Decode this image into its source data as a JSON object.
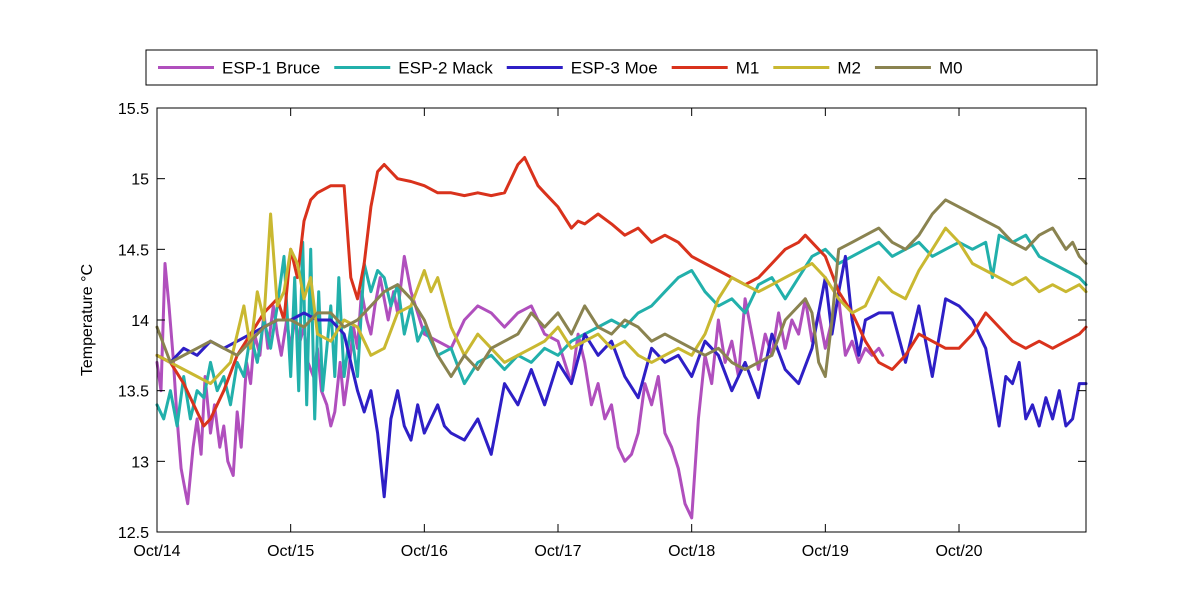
{
  "chart_data": {
    "type": "line",
    "title": "",
    "xlabel": "",
    "ylabel": "Temperature °C",
    "xlim": [
      0,
      6.95
    ],
    "ylim": [
      12.5,
      15.5
    ],
    "x_tick_values": [
      0,
      1,
      2,
      3,
      4,
      5,
      6
    ],
    "x_tick_labels": [
      "Oct/14",
      "Oct/15",
      "Oct/16",
      "Oct/17",
      "Oct/18",
      "Oct/19",
      "Oct/20"
    ],
    "y_ticks": [
      12.5,
      13,
      13.5,
      14,
      14.5,
      15,
      15.5
    ],
    "y_tick_labels": [
      "12.5",
      "13",
      "13.5",
      "14",
      "14.5",
      "15",
      "15.5"
    ],
    "grid": false,
    "legend_position": "top",
    "series": [
      {
        "name": "ESP-1 Bruce",
        "color": "#b04fbd",
        "x": [
          0,
          0.03,
          0.06,
          0.09,
          0.12,
          0.15,
          0.18,
          0.2,
          0.23,
          0.27,
          0.3,
          0.33,
          0.36,
          0.4,
          0.43,
          0.47,
          0.5,
          0.53,
          0.57,
          0.6,
          0.63,
          0.67,
          0.7,
          0.73,
          0.77,
          0.8,
          0.83,
          0.87,
          0.9,
          0.93,
          0.97,
          1.0,
          1.03,
          1.07,
          1.1,
          1.13,
          1.17,
          1.2,
          1.23,
          1.27,
          1.3,
          1.33,
          1.37,
          1.4,
          1.43,
          1.47,
          1.5,
          1.53,
          1.57,
          1.6,
          1.63,
          1.67,
          1.7,
          1.73,
          1.77,
          1.8,
          1.85,
          1.9,
          2.0,
          2.1,
          2.2,
          2.3,
          2.4,
          2.5,
          2.6,
          2.7,
          2.8,
          2.9,
          3.0,
          3.05,
          3.1,
          3.15,
          3.2,
          3.25,
          3.3,
          3.35,
          3.4,
          3.45,
          3.5,
          3.55,
          3.6,
          3.65,
          3.7,
          3.75,
          3.8,
          3.85,
          3.9,
          3.95,
          4.0,
          4.05,
          4.1,
          4.15,
          4.2,
          4.25,
          4.3,
          4.35,
          4.4,
          4.45,
          4.5,
          4.55,
          4.6,
          4.65,
          4.7,
          4.75,
          4.8,
          4.85,
          4.9,
          4.95,
          5.0,
          5.05,
          5.1,
          5.15,
          5.2,
          5.25,
          5.3,
          5.35,
          5.4,
          5.43
        ],
        "values": [
          13.7,
          13.5,
          14.4,
          14.1,
          13.75,
          13.3,
          12.95,
          12.85,
          12.7,
          13.1,
          13.3,
          13.05,
          13.6,
          13.2,
          13.4,
          13.1,
          13.25,
          13.0,
          12.9,
          13.35,
          13.1,
          13.7,
          13.55,
          13.9,
          13.75,
          14.05,
          13.8,
          14.1,
          13.9,
          13.75,
          14.0,
          13.8,
          14.0,
          13.85,
          13.95,
          13.7,
          13.6,
          13.8,
          13.5,
          13.4,
          13.25,
          13.35,
          13.7,
          13.4,
          13.6,
          13.95,
          13.8,
          14.2,
          14.0,
          13.9,
          14.1,
          14.3,
          14.15,
          14.0,
          14.2,
          14.05,
          14.45,
          14.2,
          13.9,
          13.85,
          13.8,
          14.0,
          14.1,
          14.05,
          13.95,
          14.05,
          14.1,
          13.9,
          13.85,
          13.7,
          13.55,
          13.9,
          13.7,
          13.4,
          13.55,
          13.3,
          13.4,
          13.1,
          13.0,
          13.05,
          13.2,
          13.55,
          13.4,
          13.6,
          13.2,
          13.1,
          12.95,
          12.7,
          12.6,
          13.3,
          13.75,
          13.55,
          14.0,
          13.7,
          13.85,
          13.6,
          14.15,
          13.9,
          13.65,
          13.9,
          13.75,
          14.05,
          13.8,
          14.0,
          13.9,
          14.15,
          13.85,
          14.05,
          13.8,
          14.0,
          14.15,
          13.75,
          13.85,
          13.7,
          13.8,
          13.75,
          13.8,
          13.75
        ]
      },
      {
        "name": "ESP-2 Mack",
        "color": "#22b0ab",
        "x": [
          0,
          0.05,
          0.1,
          0.15,
          0.2,
          0.25,
          0.3,
          0.35,
          0.4,
          0.45,
          0.5,
          0.55,
          0.6,
          0.65,
          0.7,
          0.75,
          0.8,
          0.85,
          0.9,
          0.95,
          1.0,
          1.03,
          1.06,
          1.09,
          1.12,
          1.15,
          1.18,
          1.21,
          1.24,
          1.27,
          1.3,
          1.33,
          1.36,
          1.4,
          1.45,
          1.5,
          1.55,
          1.6,
          1.65,
          1.7,
          1.75,
          1.8,
          1.85,
          1.9,
          1.95,
          2.0,
          2.1,
          2.2,
          2.3,
          2.4,
          2.5,
          2.6,
          2.7,
          2.8,
          2.9,
          3.0,
          3.1,
          3.2,
          3.3,
          3.4,
          3.5,
          3.6,
          3.7,
          3.8,
          3.9,
          4.0,
          4.1,
          4.2,
          4.3,
          4.4,
          4.5,
          4.6,
          4.7,
          4.8,
          4.9,
          5.0,
          5.1,
          5.2,
          5.3,
          5.4,
          5.5,
          5.6,
          5.7,
          5.8,
          5.9,
          6.0,
          6.1,
          6.2,
          6.25,
          6.3,
          6.4,
          6.5,
          6.6,
          6.7,
          6.8,
          6.9,
          6.95
        ],
        "values": [
          13.4,
          13.3,
          13.5,
          13.25,
          13.6,
          13.3,
          13.5,
          13.45,
          13.7,
          13.5,
          13.6,
          13.4,
          13.7,
          13.6,
          13.9,
          13.7,
          14.0,
          13.8,
          14.1,
          14.45,
          13.6,
          14.3,
          13.5,
          14.55,
          13.4,
          14.5,
          13.3,
          14.2,
          13.5,
          13.8,
          14.1,
          13.6,
          14.3,
          13.6,
          13.95,
          13.6,
          14.4,
          14.2,
          14.35,
          14.3,
          14.1,
          14.25,
          13.9,
          14.1,
          13.85,
          13.95,
          13.75,
          13.8,
          13.55,
          13.7,
          13.75,
          13.65,
          13.75,
          13.7,
          13.8,
          13.75,
          13.85,
          13.9,
          13.95,
          14.0,
          13.95,
          14.05,
          14.1,
          14.2,
          14.3,
          14.35,
          14.2,
          14.1,
          14.15,
          14.05,
          14.25,
          14.3,
          14.15,
          14.3,
          14.45,
          14.5,
          14.4,
          14.45,
          14.5,
          14.55,
          14.45,
          14.5,
          14.55,
          14.45,
          14.5,
          14.55,
          14.5,
          14.55,
          14.3,
          14.6,
          14.55,
          14.6,
          14.45,
          14.4,
          14.35,
          14.3,
          14.25
        ]
      },
      {
        "name": "ESP-3 Moe",
        "color": "#2e1fc6",
        "x": [
          0,
          0.1,
          0.2,
          0.3,
          0.4,
          0.5,
          0.6,
          0.7,
          0.8,
          0.9,
          1.0,
          1.1,
          1.2,
          1.3,
          1.4,
          1.5,
          1.55,
          1.6,
          1.65,
          1.7,
          1.75,
          1.8,
          1.85,
          1.9,
          1.95,
          2.0,
          2.05,
          2.1,
          2.15,
          2.2,
          2.3,
          2.4,
          2.5,
          2.6,
          2.7,
          2.8,
          2.9,
          3.0,
          3.1,
          3.2,
          3.3,
          3.4,
          3.5,
          3.6,
          3.7,
          3.8,
          3.9,
          4.0,
          4.1,
          4.2,
          4.3,
          4.4,
          4.5,
          4.6,
          4.7,
          4.8,
          4.9,
          5.0,
          5.05,
          5.1,
          5.15,
          5.2,
          5.25,
          5.3,
          5.4,
          5.5,
          5.6,
          5.7,
          5.8,
          5.9,
          6.0,
          6.1,
          6.2,
          6.3,
          6.35,
          6.4,
          6.45,
          6.5,
          6.55,
          6.6,
          6.65,
          6.7,
          6.75,
          6.8,
          6.85,
          6.9,
          6.95
        ],
        "values": [
          13.75,
          13.7,
          13.8,
          13.75,
          13.85,
          13.8,
          13.85,
          13.9,
          13.95,
          14.0,
          14.0,
          14.05,
          14.0,
          14.0,
          13.9,
          13.5,
          13.35,
          13.5,
          13.2,
          12.75,
          13.3,
          13.5,
          13.25,
          13.15,
          13.4,
          13.2,
          13.3,
          13.4,
          13.25,
          13.2,
          13.15,
          13.3,
          13.05,
          13.55,
          13.4,
          13.65,
          13.4,
          13.7,
          13.55,
          13.9,
          13.75,
          13.85,
          13.6,
          13.45,
          13.8,
          13.7,
          13.75,
          13.6,
          13.85,
          13.75,
          13.5,
          13.7,
          13.45,
          13.9,
          13.65,
          13.55,
          13.8,
          14.3,
          13.9,
          14.2,
          14.45,
          14.0,
          13.75,
          14.0,
          14.05,
          14.05,
          13.7,
          14.1,
          13.6,
          14.15,
          14.1,
          14.0,
          13.8,
          13.25,
          13.6,
          13.55,
          13.7,
          13.3,
          13.4,
          13.25,
          13.45,
          13.3,
          13.5,
          13.25,
          13.3,
          13.55,
          13.55
        ]
      },
      {
        "name": "M1",
        "color": "#d9321c",
        "x": [
          0,
          0.1,
          0.2,
          0.3,
          0.35,
          0.4,
          0.5,
          0.6,
          0.7,
          0.8,
          0.9,
          0.95,
          1.0,
          1.05,
          1.1,
          1.15,
          1.2,
          1.3,
          1.4,
          1.45,
          1.5,
          1.55,
          1.6,
          1.65,
          1.7,
          1.75,
          1.8,
          1.9,
          2.0,
          2.1,
          2.2,
          2.3,
          2.4,
          2.5,
          2.6,
          2.65,
          2.7,
          2.75,
          2.8,
          2.85,
          2.9,
          3.0,
          3.1,
          3.15,
          3.2,
          3.3,
          3.4,
          3.5,
          3.6,
          3.7,
          3.8,
          3.9,
          4.0,
          4.1,
          4.2,
          4.3,
          4.4,
          4.5,
          4.6,
          4.7,
          4.8,
          4.85,
          4.9,
          5.0,
          5.1,
          5.2,
          5.3,
          5.4,
          5.5,
          5.6,
          5.7,
          5.8,
          5.9,
          6.0,
          6.1,
          6.2,
          6.3,
          6.4,
          6.5,
          6.6,
          6.7,
          6.8,
          6.9,
          6.95
        ],
        "values": [
          13.75,
          13.7,
          13.55,
          13.35,
          13.25,
          13.3,
          13.5,
          13.75,
          13.9,
          14.05,
          14.15,
          14.0,
          14.5,
          14.3,
          14.7,
          14.85,
          14.9,
          14.95,
          14.95,
          14.3,
          14.15,
          14.4,
          14.8,
          15.05,
          15.1,
          15.05,
          15.0,
          14.98,
          14.95,
          14.9,
          14.9,
          14.88,
          14.9,
          14.88,
          14.9,
          15.0,
          15.1,
          15.15,
          15.05,
          14.95,
          14.9,
          14.8,
          14.65,
          14.7,
          14.68,
          14.75,
          14.68,
          14.6,
          14.65,
          14.55,
          14.6,
          14.55,
          14.45,
          14.4,
          14.35,
          14.3,
          14.25,
          14.3,
          14.4,
          14.5,
          14.55,
          14.6,
          14.55,
          14.45,
          14.2,
          14.05,
          13.85,
          13.7,
          13.65,
          13.75,
          13.9,
          13.85,
          13.8,
          13.8,
          13.9,
          14.05,
          13.95,
          13.85,
          13.8,
          13.85,
          13.8,
          13.85,
          13.9,
          13.95
        ]
      },
      {
        "name": "M2",
        "color": "#c9b831",
        "x": [
          0,
          0.1,
          0.2,
          0.3,
          0.4,
          0.5,
          0.55,
          0.6,
          0.65,
          0.7,
          0.75,
          0.8,
          0.85,
          0.9,
          0.95,
          1.0,
          1.05,
          1.1,
          1.15,
          1.2,
          1.3,
          1.4,
          1.5,
          1.6,
          1.7,
          1.8,
          1.9,
          2.0,
          2.05,
          2.1,
          2.2,
          2.3,
          2.4,
          2.5,
          2.6,
          2.7,
          2.8,
          2.9,
          3.0,
          3.1,
          3.2,
          3.3,
          3.4,
          3.5,
          3.6,
          3.7,
          3.8,
          3.9,
          4.0,
          4.1,
          4.2,
          4.3,
          4.4,
          4.5,
          4.6,
          4.7,
          4.8,
          4.9,
          5.0,
          5.1,
          5.2,
          5.3,
          5.4,
          5.5,
          5.6,
          5.7,
          5.8,
          5.9,
          6.0,
          6.1,
          6.2,
          6.3,
          6.4,
          6.5,
          6.6,
          6.7,
          6.8,
          6.9,
          6.95
        ],
        "values": [
          13.75,
          13.7,
          13.65,
          13.6,
          13.55,
          13.65,
          13.7,
          13.9,
          14.1,
          13.8,
          14.2,
          14.0,
          14.75,
          14.1,
          14.2,
          14.5,
          14.4,
          14.15,
          14.3,
          13.9,
          13.85,
          14.0,
          13.95,
          13.75,
          13.8,
          14.05,
          14.1,
          14.35,
          14.2,
          14.3,
          13.95,
          13.75,
          13.9,
          13.8,
          13.7,
          13.75,
          13.8,
          13.85,
          13.95,
          13.8,
          13.85,
          13.9,
          13.8,
          13.85,
          13.75,
          13.7,
          13.75,
          13.8,
          13.75,
          13.9,
          14.15,
          14.3,
          14.25,
          14.2,
          14.25,
          14.3,
          14.35,
          14.4,
          14.3,
          14.15,
          14.05,
          14.1,
          14.3,
          14.2,
          14.15,
          14.35,
          14.5,
          14.65,
          14.55,
          14.4,
          14.35,
          14.3,
          14.25,
          14.3,
          14.2,
          14.25,
          14.2,
          14.25,
          14.2
        ]
      },
      {
        "name": "M0",
        "color": "#8a8350",
        "x": [
          0,
          0.1,
          0.2,
          0.3,
          0.4,
          0.5,
          0.6,
          0.7,
          0.8,
          0.9,
          1.0,
          1.1,
          1.2,
          1.3,
          1.4,
          1.5,
          1.6,
          1.7,
          1.8,
          1.9,
          2.0,
          2.1,
          2.2,
          2.3,
          2.4,
          2.5,
          2.6,
          2.7,
          2.8,
          2.9,
          3.0,
          3.1,
          3.2,
          3.3,
          3.4,
          3.5,
          3.6,
          3.7,
          3.8,
          3.9,
          4.0,
          4.1,
          4.2,
          4.3,
          4.4,
          4.5,
          4.6,
          4.7,
          4.8,
          4.85,
          4.9,
          4.95,
          5.0,
          5.05,
          5.1,
          5.2,
          5.3,
          5.4,
          5.5,
          5.6,
          5.7,
          5.8,
          5.9,
          6.0,
          6.1,
          6.2,
          6.3,
          6.4,
          6.5,
          6.6,
          6.7,
          6.8,
          6.85,
          6.9,
          6.95
        ],
        "values": [
          13.95,
          13.7,
          13.75,
          13.8,
          13.85,
          13.8,
          13.75,
          13.85,
          13.95,
          14.0,
          14.0,
          13.95,
          14.05,
          14.05,
          13.95,
          14.0,
          14.1,
          14.2,
          14.25,
          14.15,
          14.0,
          13.75,
          13.6,
          13.75,
          13.65,
          13.8,
          13.85,
          13.9,
          14.05,
          13.95,
          14.05,
          13.9,
          14.1,
          13.95,
          13.9,
          14.0,
          13.95,
          13.85,
          13.9,
          13.85,
          13.8,
          13.75,
          13.8,
          13.7,
          13.65,
          13.7,
          13.75,
          14.0,
          14.1,
          14.15,
          14.05,
          13.7,
          13.6,
          14.0,
          14.5,
          14.55,
          14.6,
          14.65,
          14.55,
          14.5,
          14.6,
          14.75,
          14.85,
          14.8,
          14.75,
          14.7,
          14.65,
          14.55,
          14.5,
          14.6,
          14.65,
          14.5,
          14.55,
          14.45,
          14.4
        ]
      }
    ]
  }
}
